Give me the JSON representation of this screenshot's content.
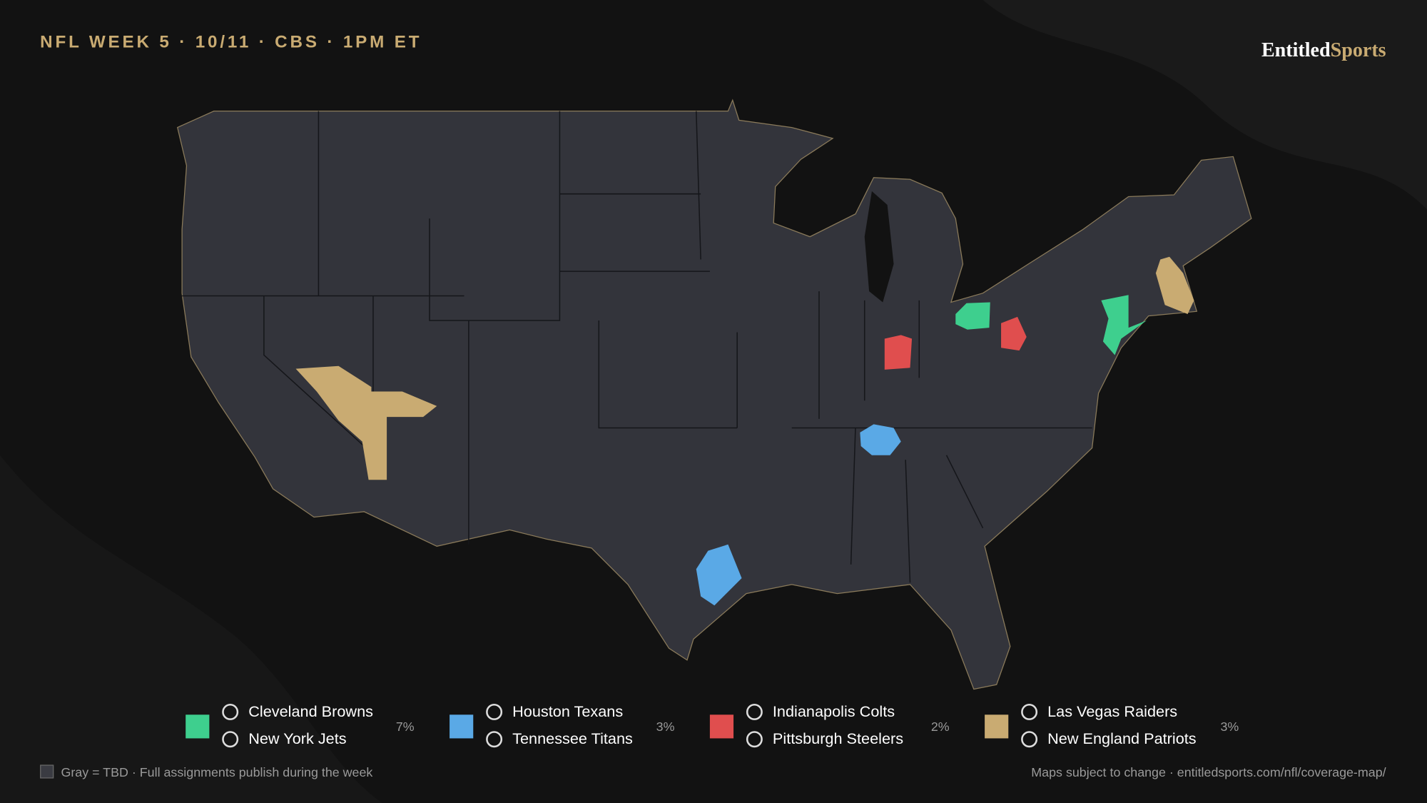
{
  "header": {
    "title": "NFL WEEK 5 · 10/11 · CBS · 1PM ET",
    "brand": {
      "first": "Entitled",
      "second": "Sports"
    }
  },
  "legend": [
    {
      "teams": [
        "Cleveland Browns",
        "New York Jets"
      ],
      "share": "7%",
      "color": "#3ecf8e"
    },
    {
      "teams": [
        "Houston Texans",
        "Tennessee Titans"
      ],
      "share": "3%",
      "color": "#5aa9e6"
    },
    {
      "teams": [
        "Indianapolis Colts",
        "Pittsburgh Steelers"
      ],
      "share": "2%",
      "color": "#e04e4e"
    },
    {
      "teams": [
        "Las Vegas Raiders",
        "New England Patriots"
      ],
      "share": "3%",
      "color": "#c9ab72"
    }
  ],
  "footer": {
    "note": "Gray = TBD · Full assignments publish during the week",
    "source": "Maps subject to change · entitledsports.com/nfl/coverage-map/"
  }
}
